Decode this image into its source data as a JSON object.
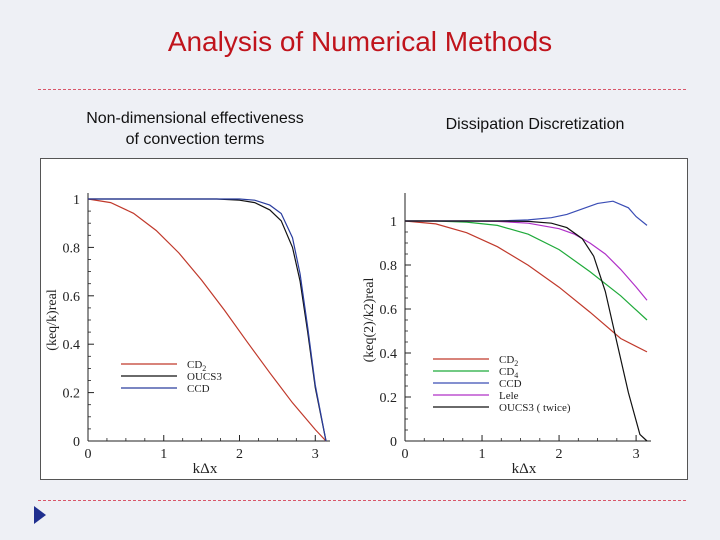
{
  "slide": {
    "title": "Analysis of Numerical Methods",
    "left_panel_title": "Non-dimensional effectiveness\nof convection terms",
    "right_panel_title": "Dissipation Discretization",
    "nav_icon": "triangle-right-icon",
    "colors": {
      "title": "#c0141c",
      "rule": "#d9566a",
      "background": "#eef0f5",
      "nav": "#1f2f8f"
    }
  },
  "chart_data": [
    {
      "type": "line",
      "title": "Non-dimensional effectiveness of convection terms",
      "xlabel": "kΔx",
      "ylabel": "(keq/k)real",
      "xlim": [
        0,
        3.14159
      ],
      "ylim": [
        0,
        1
      ],
      "xticks": [
        0,
        1,
        2,
        3
      ],
      "yticks": [
        0,
        0.2,
        0.4,
        0.6,
        0.8,
        1
      ],
      "ytick_labels": [
        "0",
        "0.2",
        "0.4",
        "0.6",
        "0.8",
        "1"
      ],
      "legend_location": "lower-left",
      "series": [
        {
          "name": "CD2",
          "label_main": "CD",
          "label_sub": "2",
          "color": "#c0392b",
          "x": [
            0,
            0.3,
            0.6,
            0.9,
            1.2,
            1.5,
            1.8,
            2.1,
            2.4,
            2.7,
            3.0,
            3.14159
          ],
          "y": [
            1.0,
            0.985,
            0.941,
            0.87,
            0.777,
            0.665,
            0.541,
            0.41,
            0.282,
            0.158,
            0.047,
            0.0
          ]
        },
        {
          "name": "OUCS3",
          "label_main": "OUCS3",
          "label_sub": "",
          "color": "#111111",
          "x": [
            0,
            0.5,
            1.0,
            1.4,
            1.7,
            2.0,
            2.2,
            2.4,
            2.55,
            2.7,
            2.8,
            2.9,
            3.0,
            3.14159
          ],
          "y": [
            1.0,
            1.0,
            1.0,
            1.0,
            1.0,
            0.995,
            0.985,
            0.955,
            0.91,
            0.8,
            0.66,
            0.45,
            0.22,
            0.0
          ]
        },
        {
          "name": "CCD",
          "label_main": "CCD",
          "label_sub": "",
          "color": "#2a3d9e",
          "x": [
            0,
            0.5,
            1.0,
            1.4,
            1.7,
            2.0,
            2.2,
            2.4,
            2.55,
            2.7,
            2.8,
            2.9,
            3.0,
            3.14159
          ],
          "y": [
            1.0,
            1.0,
            1.0,
            1.0,
            1.0,
            1.0,
            0.995,
            0.975,
            0.94,
            0.84,
            0.69,
            0.47,
            0.23,
            0.0
          ]
        }
      ]
    },
    {
      "type": "line",
      "title": "Dissipation Discretization",
      "xlabel": "kΔx",
      "ylabel": "(keq(2)/k2)real",
      "xlim": [
        0,
        3.14159
      ],
      "ylim": [
        0,
        1.1
      ],
      "xticks": [
        0,
        1,
        2,
        3
      ],
      "yticks": [
        0,
        0.2,
        0.4,
        0.6,
        0.8,
        1
      ],
      "ytick_labels": [
        "0",
        "0.2",
        "0.4",
        "0.6",
        "0.8",
        "1"
      ],
      "legend_location": "lower-left",
      "series": [
        {
          "name": "CD2",
          "label_main": "CD",
          "label_sub": "2",
          "color": "#c0392b",
          "x": [
            0,
            0.4,
            0.8,
            1.2,
            1.6,
            2.0,
            2.4,
            2.8,
            3.14159
          ],
          "y": [
            1.0,
            0.987,
            0.947,
            0.883,
            0.799,
            0.699,
            0.586,
            0.466,
            0.405
          ]
        },
        {
          "name": "CD4",
          "label_main": "CD",
          "label_sub": "4",
          "color": "#1faa3a",
          "x": [
            0,
            0.4,
            0.8,
            1.2,
            1.6,
            2.0,
            2.4,
            2.8,
            3.14159
          ],
          "y": [
            1.0,
            1.0,
            0.995,
            0.98,
            0.94,
            0.87,
            0.77,
            0.66,
            0.55
          ]
        },
        {
          "name": "CCD",
          "label_main": "CCD",
          "label_sub": "",
          "color": "#3a4db5",
          "x": [
            0,
            0.4,
            0.8,
            1.2,
            1.6,
            1.9,
            2.1,
            2.3,
            2.5,
            2.7,
            2.9,
            3.0,
            3.14159
          ],
          "y": [
            1.0,
            1.0,
            1.0,
            1.0,
            1.005,
            1.015,
            1.03,
            1.055,
            1.08,
            1.09,
            1.06,
            1.02,
            0.98
          ]
        },
        {
          "name": "Lele",
          "label_main": "Lele",
          "label_sub": "",
          "color": "#b030c8",
          "x": [
            0,
            0.4,
            0.8,
            1.2,
            1.6,
            2.0,
            2.2,
            2.4,
            2.6,
            2.8,
            3.0,
            3.14159
          ],
          "y": [
            1.0,
            1.0,
            1.0,
            0.998,
            0.99,
            0.965,
            0.94,
            0.9,
            0.85,
            0.78,
            0.7,
            0.64
          ]
        },
        {
          "name": "OUCS3 (twice)",
          "label_main": "OUCS3 ( twice)",
          "label_sub": "",
          "color": "#111111",
          "x": [
            0,
            0.4,
            0.8,
            1.2,
            1.6,
            1.9,
            2.1,
            2.3,
            2.45,
            2.6,
            2.75,
            2.9,
            3.05,
            3.14159
          ],
          "y": [
            1.0,
            1.0,
            1.0,
            1.0,
            0.998,
            0.99,
            0.97,
            0.92,
            0.84,
            0.68,
            0.45,
            0.22,
            0.03,
            0.0
          ]
        }
      ]
    }
  ]
}
